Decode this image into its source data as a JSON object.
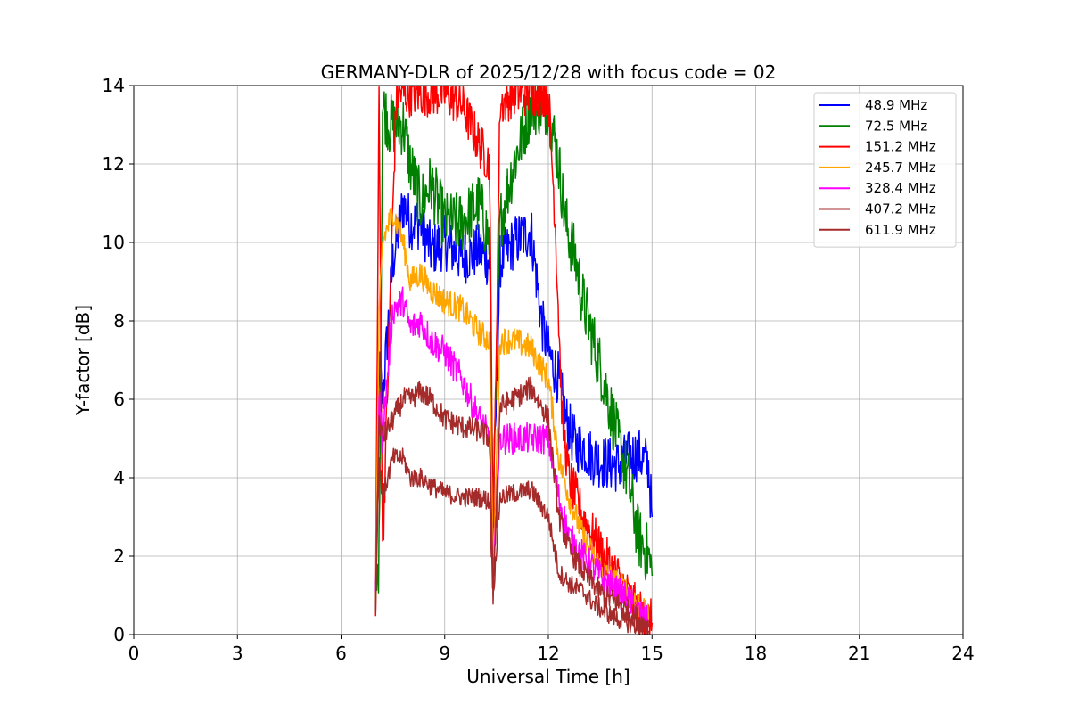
{
  "chart_data": {
    "type": "line",
    "title": "GERMANY-DLR of 2025/12/28 with focus code = 02",
    "xlabel": "Universal Time [h]",
    "ylabel": "Y-factor [dB]",
    "xlim": [
      0,
      24
    ],
    "ylim": [
      0,
      14
    ],
    "xticks": [
      "0",
      "3",
      "6",
      "9",
      "12",
      "15",
      "18",
      "21",
      "24"
    ],
    "yticks": [
      "0",
      "2",
      "4",
      "6",
      "8",
      "10",
      "12",
      "14"
    ],
    "grid": true,
    "legend_position": "top-right",
    "series": [
      {
        "name": " 48.9 MHz",
        "color": "#0000ff",
        "noise": 0.7,
        "x": [
          7.0,
          7.1,
          7.2,
          7.5,
          7.8,
          8.0,
          8.3,
          8.6,
          9.0,
          9.5,
          10.0,
          10.3,
          10.4,
          10.6,
          11.0,
          11.5,
          11.8,
          12.0,
          12.3,
          12.5,
          12.8,
          13.0,
          13.3,
          13.6,
          14.0,
          14.3,
          14.6,
          14.9,
          15.0
        ],
        "y": [
          0.8,
          6.8,
          6.0,
          9.5,
          11.0,
          10.5,
          10.5,
          9.8,
          10.0,
          9.6,
          9.8,
          9.5,
          3.0,
          9.5,
          10.0,
          10.3,
          8.0,
          7.2,
          6.5,
          5.5,
          4.8,
          4.8,
          4.5,
          4.4,
          4.3,
          4.5,
          4.6,
          4.3,
          3.0
        ]
      },
      {
        "name": " 72.5 MHz",
        "color": "#008000",
        "noise": 0.8,
        "x": [
          7.0,
          7.1,
          7.2,
          7.4,
          7.8,
          8.0,
          8.3,
          8.6,
          9.0,
          9.5,
          10.0,
          10.3,
          10.4,
          10.6,
          11.0,
          11.5,
          12.0,
          12.3,
          12.5,
          12.8,
          13.0,
          13.3,
          13.6,
          14.0,
          14.3,
          14.6,
          14.9,
          15.0
        ],
        "y": [
          0.8,
          2.0,
          13.5,
          13.0,
          13.0,
          12.0,
          11.0,
          11.5,
          10.5,
          10.5,
          11.0,
          10.0,
          3.0,
          10.5,
          12.0,
          13.5,
          13.5,
          12.0,
          10.5,
          9.5,
          8.5,
          7.5,
          6.5,
          5.0,
          4.0,
          2.5,
          2.0,
          1.5
        ]
      },
      {
        "name": "151.2 MHz",
        "color": "#ff0000",
        "noise": 0.6,
        "x": [
          7.0,
          7.1,
          7.2,
          7.6,
          8.0,
          8.3,
          8.6,
          9.0,
          9.5,
          10.0,
          10.3,
          10.4,
          10.6,
          11.0,
          11.5,
          12.0,
          12.2,
          12.4,
          12.6,
          13.0,
          13.3,
          13.6,
          14.0,
          14.3,
          14.6,
          15.0
        ],
        "y": [
          1.0,
          13.8,
          2.0,
          13.8,
          13.8,
          13.8,
          13.8,
          13.8,
          13.5,
          12.5,
          12.0,
          2.0,
          13.5,
          13.8,
          13.8,
          13.8,
          10.5,
          5.5,
          4.0,
          3.0,
          2.5,
          2.0,
          1.5,
          1.0,
          0.6,
          0.3
        ]
      },
      {
        "name": "245.7 MHz",
        "color": "#ffa500",
        "noise": 0.35,
        "x": [
          7.0,
          7.1,
          7.2,
          7.5,
          7.8,
          8.0,
          8.3,
          8.6,
          9.0,
          9.5,
          10.0,
          10.3,
          10.4,
          10.6,
          11.0,
          11.5,
          12.0,
          12.3,
          12.6,
          13.0,
          13.3,
          13.6,
          14.0,
          14.3,
          14.6,
          14.9
        ],
        "y": [
          0.8,
          8.0,
          10.0,
          10.8,
          10.0,
          9.0,
          9.2,
          8.8,
          8.5,
          8.3,
          7.7,
          7.5,
          1.5,
          7.5,
          7.5,
          7.3,
          6.5,
          4.5,
          3.5,
          2.5,
          2.0,
          1.6,
          1.3,
          1.1,
          0.8,
          0.4
        ]
      },
      {
        "name": "328.4 MHz",
        "color": "#ff00ff",
        "noise": 0.4,
        "x": [
          7.0,
          7.1,
          7.2,
          7.5,
          7.8,
          8.0,
          8.3,
          8.6,
          9.0,
          9.5,
          10.0,
          10.3,
          10.4,
          10.6,
          11.0,
          11.5,
          12.0,
          12.3,
          12.6,
          13.0,
          13.3,
          13.6,
          14.0,
          14.3,
          14.6,
          14.9
        ],
        "y": [
          0.8,
          6.0,
          5.0,
          8.3,
          8.5,
          7.8,
          8.0,
          7.5,
          7.2,
          6.5,
          5.5,
          5.0,
          1.2,
          5.0,
          5.0,
          5.0,
          5.0,
          3.5,
          2.5,
          2.0,
          1.7,
          1.4,
          1.1,
          0.9,
          0.6,
          0.3
        ]
      },
      {
        "name": "407.2 MHz",
        "color": "#a52a2a",
        "noise": 0.3,
        "x": [
          7.0,
          7.1,
          7.2,
          7.5,
          7.8,
          8.0,
          8.3,
          8.6,
          9.0,
          9.5,
          10.0,
          10.3,
          10.4,
          10.6,
          11.0,
          11.5,
          12.0,
          12.3,
          12.6,
          13.0,
          13.3,
          13.6,
          14.0,
          14.3,
          14.6,
          14.9
        ],
        "y": [
          0.8,
          5.5,
          5.0,
          5.5,
          6.0,
          6.0,
          6.2,
          6.0,
          5.5,
          5.3,
          5.2,
          5.0,
          1.0,
          5.8,
          6.0,
          6.3,
          5.5,
          3.0,
          2.2,
          1.6,
          1.3,
          1.0,
          0.8,
          0.6,
          0.4,
          0.2
        ]
      },
      {
        "name": "611.9 MHz",
        "color": "#a52a2a",
        "noise": 0.25,
        "x": [
          7.0,
          7.1,
          7.2,
          7.5,
          7.8,
          8.0,
          8.3,
          8.6,
          9.0,
          9.5,
          10.0,
          10.3,
          10.4,
          10.6,
          11.0,
          11.5,
          12.0,
          12.3,
          12.6,
          13.0,
          13.3,
          13.6,
          14.0,
          14.3,
          14.6,
          14.9
        ],
        "y": [
          0.8,
          4.5,
          3.5,
          4.5,
          4.5,
          4.0,
          4.0,
          3.8,
          3.6,
          3.5,
          3.5,
          3.4,
          1.0,
          3.5,
          3.6,
          3.7,
          3.0,
          1.6,
          1.3,
          1.1,
          0.8,
          0.6,
          0.4,
          0.3,
          0.2,
          0.1
        ]
      }
    ]
  }
}
